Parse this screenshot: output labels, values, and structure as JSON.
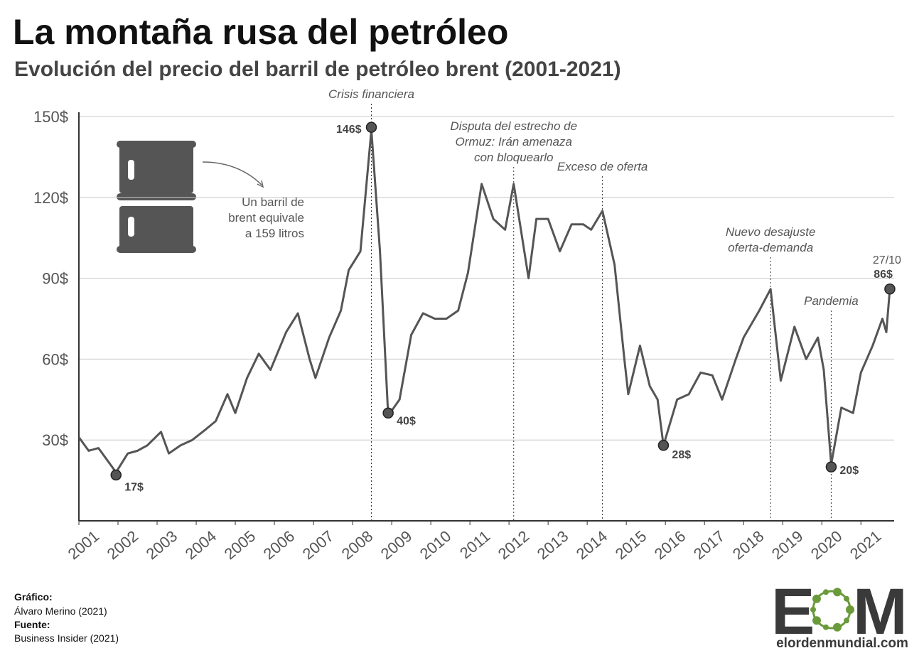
{
  "chart_data": {
    "type": "line",
    "title": "La montaña rusa del petróleo",
    "subtitle": "Evolución del precio del barril de petróleo brent (2001-2021)",
    "xlim": [
      2001,
      2021.85
    ],
    "xticks": [
      2001,
      2002,
      2003,
      2004,
      2005,
      2006,
      2007,
      2008,
      2009,
      2010,
      2011,
      2012,
      2013,
      2014,
      2015,
      2016,
      2017,
      2018,
      2019,
      2020,
      2021
    ],
    "ylim": [
      0,
      150
    ],
    "yticks": [
      {
        "value": 30,
        "label": "30$"
      },
      {
        "value": 60,
        "label": "60$"
      },
      {
        "value": 90,
        "label": "90$"
      },
      {
        "value": 120,
        "label": "120$"
      },
      {
        "value": 150,
        "label": "150$"
      }
    ],
    "grid": true,
    "series": [
      {
        "color": "#555555",
        "x": [
          2001.0,
          2001.25,
          2001.5,
          2001.75,
          2001.95,
          2002.25,
          2002.5,
          2002.75,
          2003.1,
          2003.3,
          2003.6,
          2003.9,
          2004.25,
          2004.5,
          2004.8,
          2005.0,
          2005.3,
          2005.6,
          2005.9,
          2006.3,
          2006.6,
          2006.9,
          2007.05,
          2007.4,
          2007.7,
          2007.9,
          2008.2,
          2008.48,
          2008.7,
          2008.91,
          2009.2,
          2009.5,
          2009.8,
          2010.1,
          2010.4,
          2010.7,
          2010.95,
          2011.3,
          2011.6,
          2011.9,
          2012.12,
          2012.5,
          2012.7,
          2013.0,
          2013.3,
          2013.6,
          2013.9,
          2014.1,
          2014.39,
          2014.7,
          2014.95,
          2015.05,
          2015.35,
          2015.6,
          2015.8,
          2015.95,
          2016.3,
          2016.6,
          2016.9,
          2017.2,
          2017.45,
          2017.8,
          2018.0,
          2018.4,
          2018.69,
          2018.95,
          2019.3,
          2019.6,
          2019.9,
          2020.05,
          2020.24,
          2020.5,
          2020.8,
          2021.0,
          2021.3,
          2021.55,
          2021.65,
          2021.74
        ],
        "values": [
          31,
          26,
          27,
          22,
          18,
          25,
          26,
          28,
          33,
          25,
          28,
          30,
          34,
          37,
          47,
          40,
          53,
          62,
          56,
          70,
          77,
          60,
          53,
          68,
          78,
          93,
          100,
          145,
          100,
          39,
          45,
          69,
          77,
          75,
          75,
          78,
          92,
          125,
          112,
          108,
          125,
          90,
          112,
          112,
          100,
          110,
          110,
          108,
          115,
          95,
          60,
          47,
          65,
          50,
          45,
          28,
          45,
          47,
          55,
          54,
          45,
          60,
          68,
          78,
          86,
          52,
          72,
          60,
          68,
          56,
          21,
          42,
          40,
          55,
          65,
          75,
          70,
          86
        ]
      }
    ],
    "points": {
      "x": [
        2001.95,
        2008.48,
        2008.91,
        2015.95,
        2020.24,
        2021.74
      ],
      "values": [
        17,
        146,
        40,
        28,
        20,
        86
      ],
      "value_labels": [
        "17$",
        "146$",
        "40$",
        "28$",
        "20$",
        "86$"
      ]
    },
    "date_label": "27/10",
    "events": [
      {
        "x": 2008.48,
        "lines": [
          "Crisis financiera"
        ]
      },
      {
        "x": 2012.12,
        "lines": [
          "Disputa del estrecho de",
          "Ormuz: Irán amenaza",
          "con bloquearlo"
        ]
      },
      {
        "x": 2014.39,
        "lines": [
          "Exceso de oferta"
        ]
      },
      {
        "x": 2018.69,
        "lines": [
          "Nuevo desajuste",
          "oferta-demanda"
        ]
      },
      {
        "x": 2020.24,
        "lines": [
          "Pandemia"
        ]
      }
    ],
    "note": [
      "Un barril de",
      "brent equivale",
      "a 159 litros"
    ]
  },
  "credits": {
    "chart_label": "Gráfico:",
    "chart_author": "Álvaro Merino (2021)",
    "source_label": "Fuente:",
    "source": "Business Insider (2021)"
  },
  "logo": {
    "first": "E",
    "last": "M",
    "site": "elordenmundial.com"
  }
}
